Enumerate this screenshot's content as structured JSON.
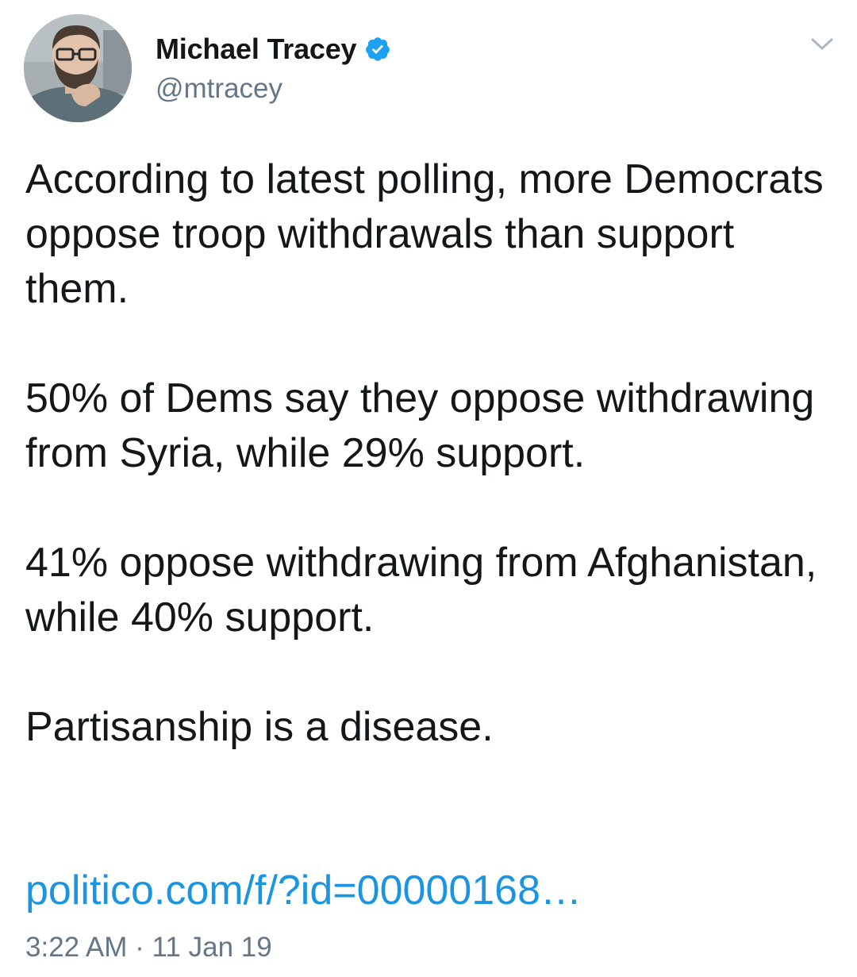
{
  "tweet": {
    "author": {
      "display_name": "Michael Tracey",
      "handle": "@mtracey",
      "verified": true
    },
    "paragraphs": [
      "According to latest polling, more Democrats oppose troop withdrawals than support them.",
      "50% of Dems say they oppose withdrawing from Syria, while 29% support.",
      "41% oppose withdrawing from Afghanistan, while 40% support.",
      "Partisanship is a disease."
    ],
    "link_text": "politico.com/f/?id=00000168…",
    "time": "3:22 AM",
    "separator": "·",
    "date": "11 Jan 19"
  },
  "icons": {
    "verified": "verified-badge-icon",
    "menu": "chevron-down-icon"
  },
  "colors": {
    "text": "#14171a",
    "secondary": "#657786",
    "link": "#1b95e0",
    "verified": "#1da1f2"
  }
}
